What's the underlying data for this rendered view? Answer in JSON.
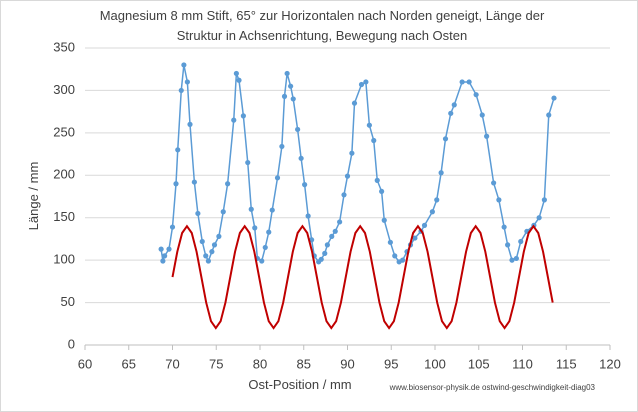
{
  "chart_data": {
    "type": "line",
    "title": [
      "Magnesium 8 mm Stift, 65° zur Horizontalen nach Norden geneigt, Länge der",
      "Struktur in Achsenrichtung,  Bewegung nach Osten"
    ],
    "x_label": "Ost-Position / mm",
    "y_label": "Länge / mm",
    "annotation": "www.biosensor-physik.de  ostwind-geschwindigkeit-diag03",
    "xlim": [
      60,
      120
    ],
    "xticks": [
      60,
      65,
      70,
      75,
      80,
      85,
      90,
      95,
      100,
      105,
      110,
      115,
      120
    ],
    "ylim": [
      0,
      350
    ],
    "yticks": [
      0,
      50,
      100,
      150,
      200,
      250,
      300,
      350
    ],
    "grid": true,
    "series": [
      {
        "color": "#5b9bd5",
        "markers": true,
        "x": [
          68.7,
          68.9,
          69.1,
          69.6,
          70.0,
          70.4,
          70.6,
          71.0,
          71.3,
          71.7,
          72.0,
          72.5,
          72.9,
          73.4,
          73.8,
          74.1,
          74.5,
          74.8,
          75.3,
          75.8,
          76.3,
          77.0,
          77.3,
          77.6,
          78.1,
          78.6,
          79.0,
          79.4,
          79.7,
          80.2,
          80.6,
          81.0,
          81.4,
          82.0,
          82.5,
          82.8,
          83.1,
          83.5,
          83.8,
          84.3,
          84.7,
          85.1,
          85.5,
          85.9,
          86.2,
          86.7,
          87.0,
          87.4,
          87.7,
          88.2,
          88.6,
          89.1,
          89.6,
          90.0,
          90.5,
          90.8,
          91.6,
          92.1,
          92.5,
          93.0,
          93.4,
          93.9,
          94.2,
          94.9,
          95.4,
          95.9,
          96.3,
          96.8,
          97.2,
          97.7,
          98.4,
          98.8,
          99.7,
          100.2,
          100.7,
          101.2,
          101.8,
          102.2,
          103.1,
          103.9,
          104.7,
          105.4,
          105.9,
          106.7,
          107.3,
          107.9,
          108.3,
          108.8,
          109.3,
          109.8,
          110.5,
          111.3,
          111.9,
          112.5,
          113.0,
          113.6
        ],
        "values": [
          113,
          99,
          105,
          113,
          139,
          190,
          230,
          300,
          330,
          310,
          260,
          192,
          155,
          122,
          105,
          99,
          110,
          118,
          128,
          157,
          190,
          265,
          320,
          312,
          270,
          215,
          160,
          138,
          102,
          99,
          115,
          133,
          159,
          197,
          234,
          293,
          320,
          305,
          290,
          254,
          220,
          189,
          152,
          124,
          105,
          98,
          101,
          108,
          118,
          128,
          134,
          145,
          177,
          199,
          226,
          285,
          307,
          310,
          259,
          241,
          194,
          181,
          147,
          121,
          105,
          98,
          100,
          110,
          118,
          126,
          134,
          141,
          157,
          171,
          203,
          243,
          273,
          283,
          310,
          310,
          295,
          271,
          246,
          191,
          171,
          139,
          118,
          100,
          102,
          122,
          134,
          141,
          150,
          171,
          271,
          291
        ]
      },
      {
        "color": "#c00000",
        "markers": false,
        "x": [
          70,
          70.55,
          71.1,
          71.65,
          72.2,
          72.75,
          73.3,
          73.85,
          74.4,
          74.95,
          75.5,
          76.05,
          76.6,
          77.15,
          77.7,
          78.25,
          78.8,
          79.35,
          79.9,
          80.45,
          81,
          81.55,
          82.1,
          82.65,
          83.2,
          83.75,
          84.3,
          84.85,
          85.4,
          85.95,
          86.5,
          87.05,
          87.6,
          88.15,
          88.7,
          89.25,
          89.8,
          90.35,
          90.9,
          91.45,
          92,
          92.55,
          93.1,
          93.65,
          94.2,
          94.75,
          95.3,
          95.85,
          96.4,
          96.95,
          97.5,
          98.05,
          98.6,
          99.15,
          99.7,
          100.25,
          100.8,
          101.35,
          101.9,
          102.45,
          103,
          103.55,
          104.1,
          104.65,
          105.2,
          105.75,
          106.3,
          106.85,
          107.4,
          107.95,
          108.5,
          109.05,
          109.6,
          110.15,
          110.7,
          111.25,
          111.8,
          112.35,
          112.9,
          113.45
        ],
        "values": [
          80,
          110,
          132,
          140,
          132,
          110,
          80,
          50,
          28,
          20,
          28,
          50,
          80,
          110,
          132,
          140,
          132,
          110,
          80,
          50,
          28,
          20,
          28,
          50,
          80,
          110,
          132,
          140,
          132,
          110,
          80,
          50,
          28,
          20,
          28,
          50,
          80,
          110,
          132,
          140,
          132,
          110,
          80,
          50,
          28,
          20,
          28,
          50,
          80,
          110,
          132,
          140,
          132,
          110,
          80,
          50,
          28,
          20,
          28,
          50,
          80,
          110,
          132,
          140,
          132,
          110,
          80,
          50,
          28,
          20,
          28,
          50,
          80,
          110,
          132,
          140,
          132,
          110,
          80,
          50
        ]
      }
    ]
  }
}
